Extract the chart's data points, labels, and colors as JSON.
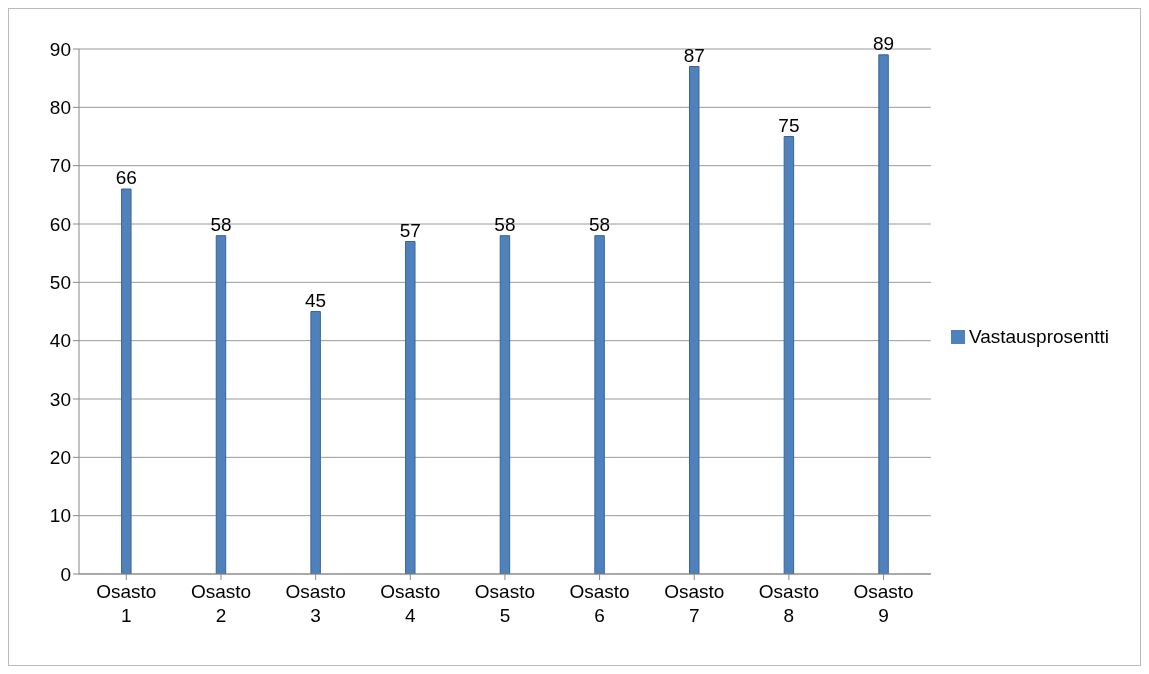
{
  "chart_data": {
    "type": "bar",
    "categories": [
      "Osasto 1",
      "Osasto 2",
      "Osasto 3",
      "Osasto 4",
      "Osasto 5",
      "Osasto 6",
      "Osasto 7",
      "Osasto 8",
      "Osasto 9"
    ],
    "series": [
      {
        "name": "Vastausprosentti",
        "color": "#4f81bd",
        "values": [
          66,
          58,
          45,
          57,
          58,
          58,
          87,
          75,
          89
        ]
      }
    ],
    "ylim": [
      0,
      90
    ],
    "yticks": [
      0,
      10,
      20,
      30,
      40,
      50,
      60,
      70,
      80,
      90
    ],
    "grid": "y",
    "legend": "right",
    "data_labels": true
  }
}
